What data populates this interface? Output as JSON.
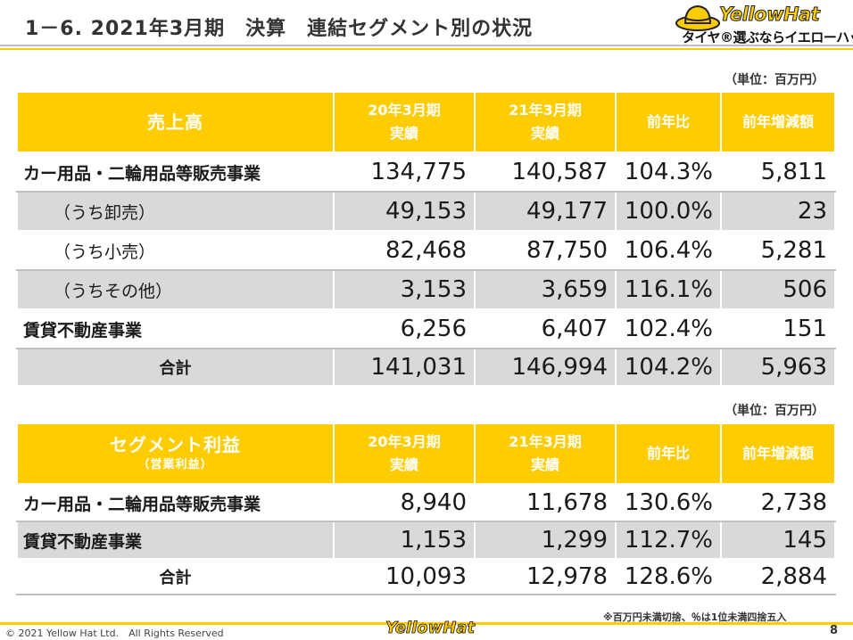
{
  "header": {
    "title": "1－6. 2021年3月期　決算　連結セグメント別の状況",
    "logo_text": "YellowHat",
    "logo_tagline": "タイヤ®選ぶならイエローハット"
  },
  "table1": {
    "unit": "（単位：百万円）",
    "headers": {
      "segment": "売上高",
      "prev_line1": "20年3月期",
      "prev_line2": "実績",
      "curr_line1": "21年3月期",
      "curr_line2": "実績",
      "yoy": "前年比",
      "diff": "前年増減額"
    },
    "rows": [
      {
        "label": "カー用品・二輪用品等販売事業",
        "prev": "134,775",
        "curr": "140,587",
        "yoy": "104.3%",
        "diff": "5,811"
      },
      {
        "label": "（うち卸売）",
        "prev": "49,153",
        "curr": "49,177",
        "yoy": "100.0%",
        "diff": "23"
      },
      {
        "label": "（うち小売）",
        "prev": "82,468",
        "curr": "87,750",
        "yoy": "106.4%",
        "diff": "5,281"
      },
      {
        "label": "（うちその他）",
        "prev": "3,153",
        "curr": "3,659",
        "yoy": "116.1%",
        "diff": "506"
      },
      {
        "label": "賃貸不動産事業",
        "prev": "6,256",
        "curr": "6,407",
        "yoy": "102.4%",
        "diff": "151"
      },
      {
        "label": "合計",
        "prev": "141,031",
        "curr": "146,994",
        "yoy": "104.2%",
        "diff": "5,963"
      }
    ]
  },
  "table2": {
    "unit": "（単位：百万円）",
    "headers": {
      "segment": "セグメント利益",
      "segment_sub": "（営業利益）",
      "prev_line1": "20年3月期",
      "prev_line2": "実績",
      "curr_line1": "21年3月期",
      "curr_line2": "実績",
      "yoy": "前年比",
      "diff": "前年増減額"
    },
    "rows": [
      {
        "label": "カー用品・二輪用品等販売事業",
        "prev": "8,940",
        "curr": "11,678",
        "yoy": "130.6%",
        "diff": "2,738"
      },
      {
        "label": "賃貸不動産事業",
        "prev": "1,153",
        "curr": "1,299",
        "yoy": "112.7%",
        "diff": "145"
      },
      {
        "label": "合計",
        "prev": "10,093",
        "curr": "12,978",
        "yoy": "128.6%",
        "diff": "2,884"
      }
    ]
  },
  "note": "※百万円未満切捨、％は1位未満四捨五入",
  "footer": {
    "copyright": "© 2021 Yellow Hat Ltd.　All Rights Reserved",
    "logo_text": "YellowHat",
    "page_number": "8"
  },
  "colors": {
    "accent": "#ffcc00",
    "row_gray": "#d9d9d9",
    "border": "#a6a6a6"
  }
}
